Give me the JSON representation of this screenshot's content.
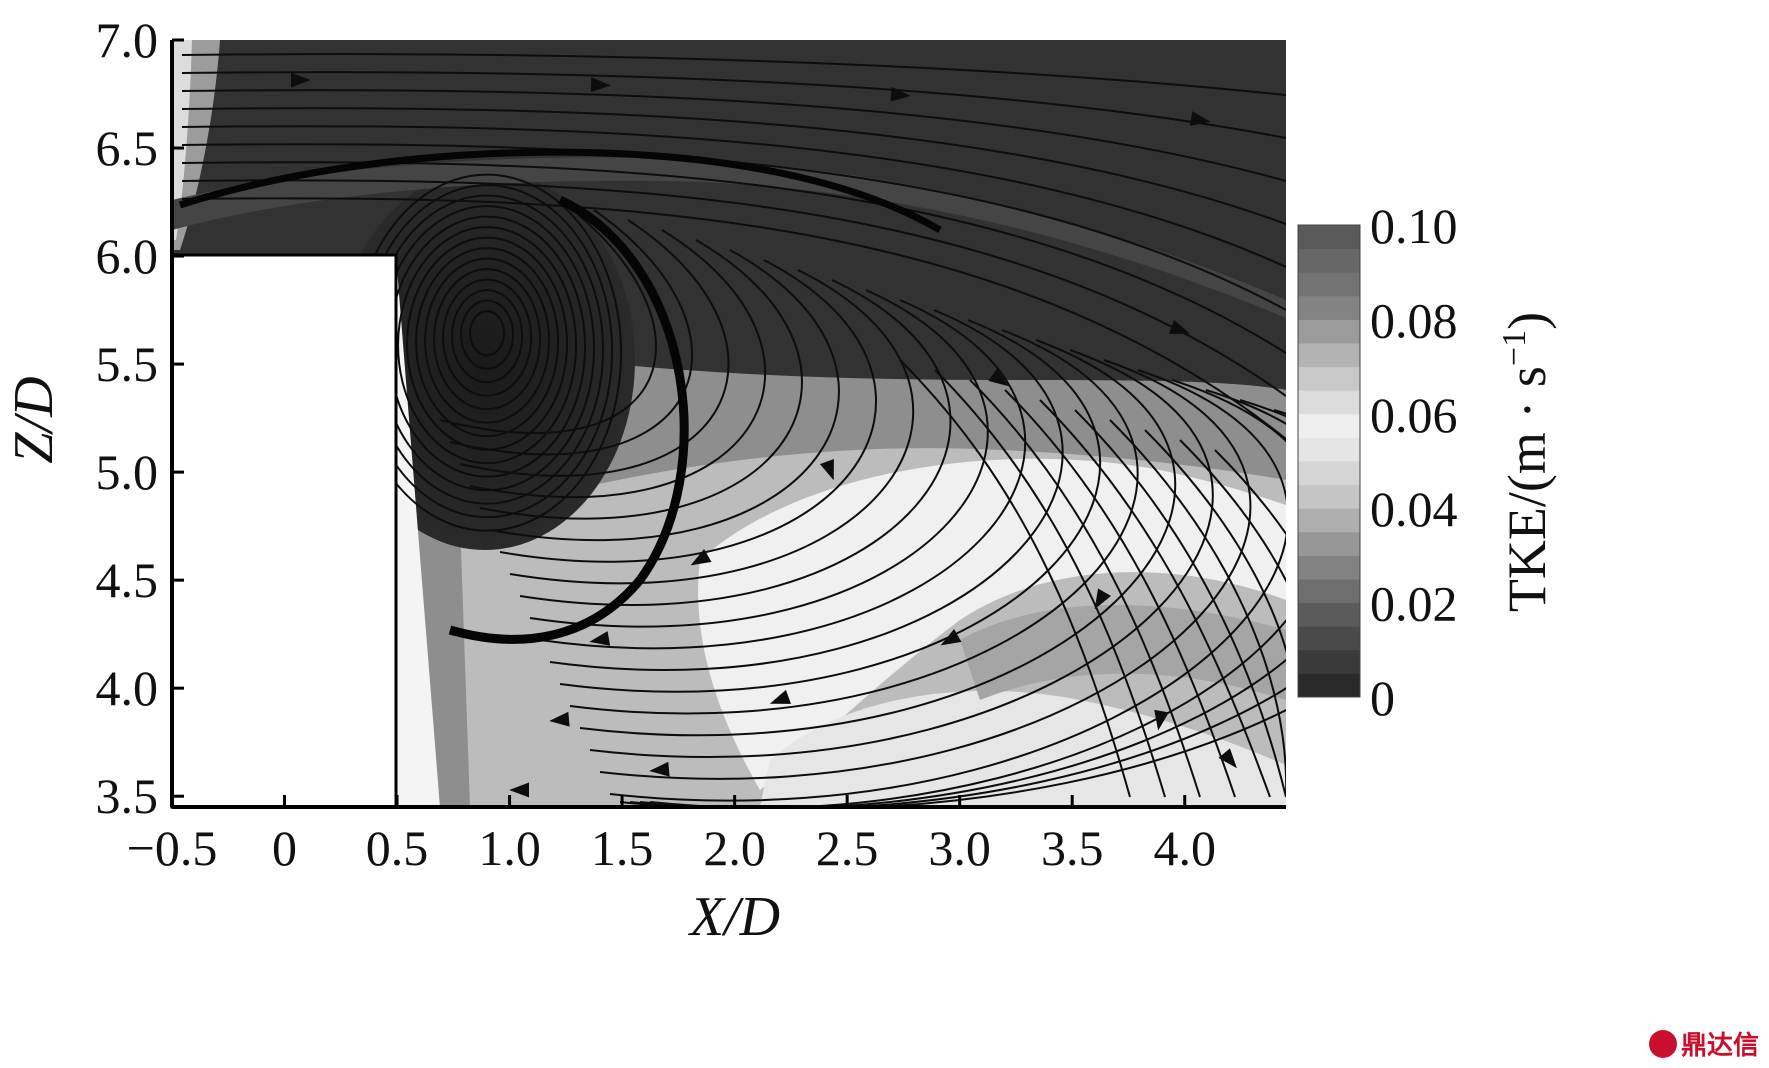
{
  "chart_data": {
    "type": "heatmap",
    "title": "",
    "xlabel": "X/D",
    "ylabel": "Z/D",
    "xlim": [
      -0.5,
      4.45
    ],
    "ylim": [
      3.45,
      7.0
    ],
    "x_ticks": [
      "−0.5",
      "0",
      "0.5",
      "1.0",
      "1.5",
      "2.0",
      "2.5",
      "3.0",
      "3.5",
      "4.0"
    ],
    "x_tick_values": [
      -0.5,
      0,
      0.5,
      1.0,
      1.5,
      2.0,
      2.5,
      3.0,
      3.5,
      4.0
    ],
    "y_ticks": [
      "3.5",
      "4.0",
      "4.5",
      "5.0",
      "5.5",
      "6.0",
      "6.5",
      "7.0"
    ],
    "y_tick_values": [
      3.5,
      4.0,
      4.5,
      5.0,
      5.5,
      6.0,
      6.5,
      7.0
    ],
    "obstacle": {
      "x_range": [
        -0.5,
        0.5
      ],
      "z_range": [
        3.45,
        6.0
      ]
    },
    "vortex_center": [
      0.9,
      5.65
    ],
    "colorbar": {
      "title": "TKE/(m · s",
      "title_exp": "−1",
      "title_close": ")",
      "range": [
        0,
        0.1
      ],
      "ticks": [
        "0",
        "0.02",
        "0.04",
        "0.06",
        "0.08",
        "0.10"
      ],
      "tick_values": [
        0,
        0.02,
        0.04,
        0.06,
        0.08,
        0.1
      ],
      "colors": [
        "#2a2a2a",
        "#555555",
        "#8a8a8a",
        "#c8c8c8",
        "#f2f2f2",
        "#bdbdbd",
        "#7c7c7c",
        "#5a5a5a"
      ]
    },
    "grid": false,
    "field_colors": {
      "background": "#303030",
      "high_tke": "#efefef",
      "mid_tke": "#9a9a9a",
      "streamline": "#0d0d0d"
    }
  },
  "watermark": {
    "text": "鼎达信"
  }
}
